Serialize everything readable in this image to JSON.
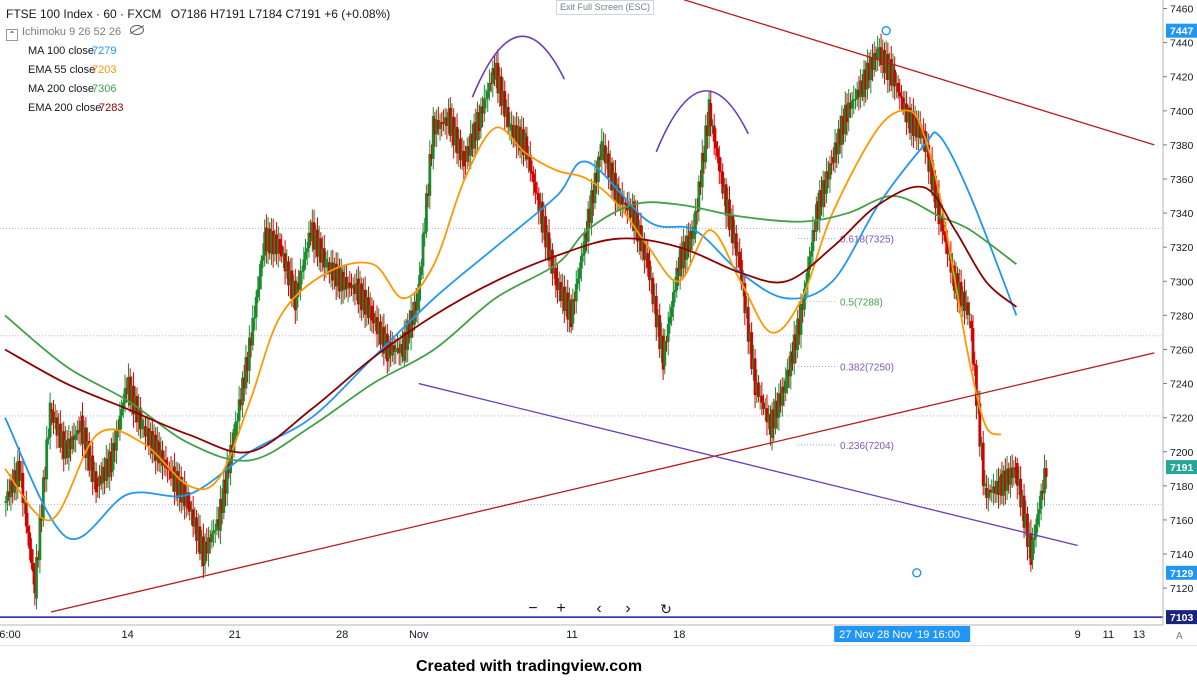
{
  "header": {
    "symbol": "FTSE 100 Index · 60 · FXCM",
    "ohlc": "O7186 H7191 L7184 C7191 +6 (+0.08%)",
    "ichimoku": "Ichimoku 9 26 52 26"
  },
  "indicators": [
    {
      "label": "MA 100 close",
      "value": "7279",
      "color": "#2196f3"
    },
    {
      "label": "EMA 55 close",
      "value": "7203",
      "color": "#ff9800"
    },
    {
      "label": "MA 200 close",
      "value": "7306",
      "color": "#43a047"
    },
    {
      "label": "EMA 200 close",
      "value": "7283",
      "color": "#8b0000"
    }
  ],
  "exit_fullscreen": "Exit Full Screen (ESC)",
  "credit": "Created with tradingview.com",
  "chart_data": {
    "type": "line",
    "title": "FTSE 100 Index · 60 · FXCM",
    "xlabel": "",
    "ylabel": "",
    "ylim": [
      7106,
      7465
    ],
    "grid": false,
    "price_ticks": [
      7460,
      7440,
      7420,
      7400,
      7380,
      7360,
      7340,
      7320,
      7300,
      7280,
      7260,
      7240,
      7220,
      7200,
      7180,
      7160,
      7140,
      7120
    ],
    "time_ticks": [
      {
        "label": "6:00",
        "t": 0
      },
      {
        "label": "14",
        "t": 8
      },
      {
        "label": "21",
        "t": 15
      },
      {
        "label": "28",
        "t": 22
      },
      {
        "label": "Nov",
        "t": 27
      },
      {
        "label": "11",
        "t": 37
      },
      {
        "label": "18",
        "t": 44
      },
      {
        "label": "9",
        "t": 70
      },
      {
        "label": "11",
        "t": 72
      },
      {
        "label": "13",
        "t": 74
      }
    ],
    "time_readout": "27 Nov",
    "time_readout_t": 54.5,
    "crosshair_readout": "28 Nov '19    16:00",
    "crosshair_t": 59,
    "price_badges": [
      {
        "label": "7447",
        "value": 7447,
        "color": "#2196f3"
      },
      {
        "label": "7191",
        "value": 7191,
        "color": "#26a69a"
      },
      {
        "label": "7129",
        "value": 7129,
        "color": "#2196f3"
      },
      {
        "label": "7103",
        "value": 7103,
        "color": "#1a237e"
      }
    ],
    "close": [
      [
        0,
        7170
      ],
      [
        1,
        7190
      ],
      [
        2,
        7120
      ],
      [
        3,
        7225
      ],
      [
        4,
        7200
      ],
      [
        5,
        7215
      ],
      [
        6,
        7180
      ],
      [
        7,
        7195
      ],
      [
        8,
        7240
      ],
      [
        9,
        7215
      ],
      [
        10,
        7200
      ],
      [
        11,
        7185
      ],
      [
        12,
        7170
      ],
      [
        13,
        7140
      ],
      [
        14,
        7160
      ],
      [
        15,
        7210
      ],
      [
        16,
        7260
      ],
      [
        17,
        7325
      ],
      [
        18,
        7320
      ],
      [
        19,
        7290
      ],
      [
        20,
        7330
      ],
      [
        21,
        7310
      ],
      [
        22,
        7300
      ],
      [
        23,
        7295
      ],
      [
        24,
        7280
      ],
      [
        25,
        7260
      ],
      [
        26,
        7260
      ],
      [
        27,
        7290
      ],
      [
        28,
        7390
      ],
      [
        29,
        7395
      ],
      [
        30,
        7370
      ],
      [
        31,
        7395
      ],
      [
        32,
        7425
      ],
      [
        33,
        7390
      ],
      [
        34,
        7380
      ],
      [
        35,
        7340
      ],
      [
        36,
        7300
      ],
      [
        37,
        7280
      ],
      [
        38,
        7330
      ],
      [
        39,
        7380
      ],
      [
        40,
        7350
      ],
      [
        41,
        7340
      ],
      [
        42,
        7310
      ],
      [
        43,
        7255
      ],
      [
        44,
        7310
      ],
      [
        45,
        7330
      ],
      [
        46,
        7400
      ],
      [
        47,
        7350
      ],
      [
        48,
        7310
      ],
      [
        49,
        7240
      ],
      [
        50,
        7215
      ],
      [
        51,
        7240
      ],
      [
        52,
        7280
      ],
      [
        53,
        7340
      ],
      [
        54,
        7370
      ],
      [
        55,
        7400
      ],
      [
        56,
        7415
      ],
      [
        57,
        7435
      ],
      [
        58,
        7420
      ],
      [
        59,
        7395
      ],
      [
        60,
        7385
      ],
      [
        61,
        7340
      ],
      [
        62,
        7300
      ],
      [
        63,
        7280
      ],
      [
        64,
        7175
      ],
      [
        65,
        7180
      ],
      [
        66,
        7190
      ],
      [
        67,
        7140
      ],
      [
        68,
        7191
      ]
    ],
    "series": [
      {
        "name": "MA 100 close",
        "color": "#2196f3",
        "points": [
          [
            0,
            7220
          ],
          [
            4,
            7150
          ],
          [
            8,
            7175
          ],
          [
            12,
            7175
          ],
          [
            16,
            7200
          ],
          [
            20,
            7220
          ],
          [
            24,
            7255
          ],
          [
            28,
            7290
          ],
          [
            32,
            7320
          ],
          [
            36,
            7350
          ],
          [
            38,
            7370
          ],
          [
            42,
            7335
          ],
          [
            45,
            7330
          ],
          [
            48,
            7305
          ],
          [
            51,
            7290
          ],
          [
            54,
            7300
          ],
          [
            57,
            7345
          ],
          [
            60,
            7380
          ],
          [
            61,
            7385
          ],
          [
            63,
            7350
          ],
          [
            66,
            7280
          ]
        ]
      },
      {
        "name": "EMA 55 close",
        "color": "#ff9800",
        "points": [
          [
            0,
            7190
          ],
          [
            3,
            7160
          ],
          [
            6,
            7210
          ],
          [
            9,
            7205
          ],
          [
            12,
            7180
          ],
          [
            14,
            7185
          ],
          [
            16,
            7230
          ],
          [
            18,
            7280
          ],
          [
            21,
            7305
          ],
          [
            24,
            7310
          ],
          [
            26,
            7290
          ],
          [
            28,
            7310
          ],
          [
            30,
            7360
          ],
          [
            32,
            7390
          ],
          [
            34,
            7375
          ],
          [
            36,
            7365
          ],
          [
            38,
            7360
          ],
          [
            40,
            7345
          ],
          [
            42,
            7320
          ],
          [
            44,
            7300
          ],
          [
            46,
            7330
          ],
          [
            48,
            7300
          ],
          [
            50,
            7270
          ],
          [
            52,
            7290
          ],
          [
            54,
            7340
          ],
          [
            57,
            7390
          ],
          [
            59,
            7400
          ],
          [
            60,
            7385
          ],
          [
            61,
            7350
          ],
          [
            62,
            7300
          ],
          [
            63,
            7250
          ],
          [
            64,
            7215
          ],
          [
            65,
            7210
          ]
        ]
      },
      {
        "name": "MA 200 close",
        "color": "#43a047",
        "points": [
          [
            0,
            7280
          ],
          [
            4,
            7250
          ],
          [
            8,
            7230
          ],
          [
            12,
            7205
          ],
          [
            16,
            7195
          ],
          [
            20,
            7215
          ],
          [
            24,
            7240
          ],
          [
            28,
            7260
          ],
          [
            32,
            7290
          ],
          [
            36,
            7310
          ],
          [
            38,
            7330
          ],
          [
            41,
            7345
          ],
          [
            44,
            7345
          ],
          [
            48,
            7338
          ],
          [
            52,
            7335
          ],
          [
            55,
            7340
          ],
          [
            58,
            7350
          ],
          [
            61,
            7338
          ],
          [
            63,
            7330
          ],
          [
            66,
            7310
          ]
        ]
      },
      {
        "name": "EMA 200 close",
        "color": "#8b0000",
        "points": [
          [
            0,
            7260
          ],
          [
            4,
            7240
          ],
          [
            8,
            7225
          ],
          [
            12,
            7210
          ],
          [
            16,
            7200
          ],
          [
            20,
            7225
          ],
          [
            24,
            7255
          ],
          [
            28,
            7280
          ],
          [
            32,
            7300
          ],
          [
            36,
            7315
          ],
          [
            40,
            7325
          ],
          [
            44,
            7320
          ],
          [
            48,
            7305
          ],
          [
            51,
            7300
          ],
          [
            54,
            7320
          ],
          [
            57,
            7345
          ],
          [
            60,
            7355
          ],
          [
            62,
            7330
          ],
          [
            64,
            7300
          ],
          [
            66,
            7285
          ]
        ]
      }
    ],
    "fibonacci": [
      {
        "label": "0.618(7325)",
        "value": 7325,
        "color": "#7e57c2"
      },
      {
        "label": "0.5(7288)",
        "value": 7288,
        "color": "#43a047"
      },
      {
        "label": "0.382(7250)",
        "value": 7250,
        "color": "#7e57c2"
      },
      {
        "label": "0.236(7204)",
        "value": 7204,
        "color": "#7e57c2"
      }
    ],
    "trendlines": [
      {
        "name": "upper",
        "color": "#b71c1c",
        "from": [
          44,
          7466
        ],
        "to": [
          75,
          7380
        ]
      },
      {
        "name": "lower",
        "color": "#b71c1c",
        "from": [
          3,
          7106
        ],
        "to": [
          75,
          7258
        ]
      },
      {
        "name": "support",
        "color": "#6a3db8",
        "from": [
          27,
          7240
        ],
        "to": [
          70,
          7145
        ]
      }
    ],
    "reference_levels": [
      {
        "value": 7103,
        "color": "#1a1aa6"
      },
      {
        "value": 7331,
        "color": "#7e57c2"
      },
      {
        "value": 7268,
        "color": "#7e57c2"
      },
      {
        "value": 7221,
        "color": "#7e57c2"
      },
      {
        "value": 7169,
        "color": "#7e57c2"
      }
    ],
    "head_and_shoulders_arcs": [
      {
        "t1": 30.5,
        "t2": 36.5,
        "peak": 7442
      },
      {
        "t1": 42.5,
        "t2": 48.5,
        "peak": 7410
      }
    ],
    "fib_markers": [
      {
        "t": 57.5,
        "value": 7447
      },
      {
        "t": 59.5,
        "value": 7129
      }
    ]
  }
}
